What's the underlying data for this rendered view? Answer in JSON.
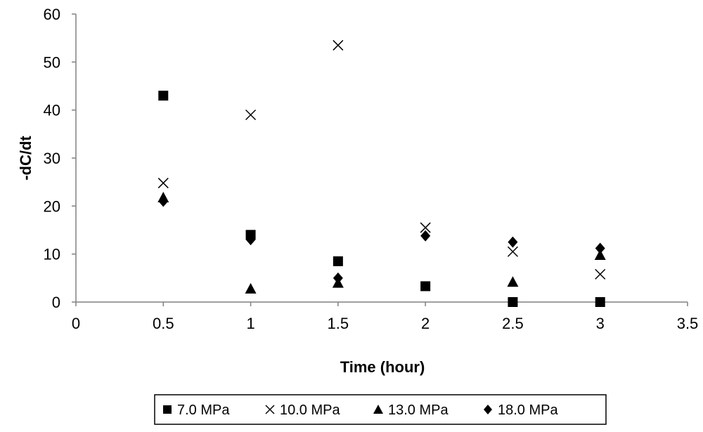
{
  "chart_data": {
    "type": "scatter",
    "title": "",
    "xlabel": "Time (hour)",
    "ylabel": "-dC/dt",
    "xlim": [
      0,
      3.5
    ],
    "ylim": [
      0,
      60
    ],
    "x_ticks": [
      0,
      0.5,
      1,
      1.5,
      2,
      2.5,
      3,
      3.5
    ],
    "x_tick_labels": [
      "0",
      "0.5",
      "1",
      "1.5",
      "2",
      "2.5",
      "3",
      "3.5"
    ],
    "y_ticks": [
      0,
      10,
      20,
      30,
      40,
      50,
      60
    ],
    "y_tick_labels": [
      "0",
      "10",
      "20",
      "30",
      "40",
      "50",
      "60"
    ],
    "grid": false,
    "legend_position": "bottom",
    "series": [
      {
        "name": "7.0 MPa",
        "marker": "square",
        "color": "#000000",
        "points": [
          [
            0.5,
            43
          ],
          [
            1,
            14
          ],
          [
            1.5,
            8.5
          ],
          [
            2,
            3.3
          ],
          [
            2.5,
            0
          ],
          [
            3,
            0
          ]
        ]
      },
      {
        "name": "10.0 MPa",
        "marker": "cross",
        "color": "#000000",
        "points": [
          [
            0.5,
            24.8
          ],
          [
            1,
            39
          ],
          [
            1.5,
            53.5
          ],
          [
            2,
            15.5
          ],
          [
            2.5,
            10.5
          ],
          [
            3,
            5.8
          ]
        ]
      },
      {
        "name": "13.0 MPa",
        "marker": "triangle",
        "color": "#000000",
        "points": [
          [
            0.5,
            21.8
          ],
          [
            1,
            2.8
          ],
          [
            1.5,
            4
          ],
          [
            2.5,
            4.2
          ],
          [
            3,
            9.8
          ]
        ]
      },
      {
        "name": "18.0 MPa",
        "marker": "diamond",
        "color": "#000000",
        "points": [
          [
            0.5,
            21
          ],
          [
            1,
            13
          ],
          [
            1.5,
            5
          ],
          [
            2,
            13.8
          ],
          [
            2.5,
            12.5
          ],
          [
            3,
            11.2
          ]
        ]
      }
    ]
  }
}
